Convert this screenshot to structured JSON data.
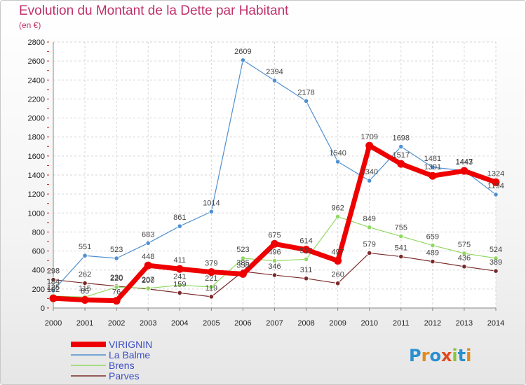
{
  "chart_data": {
    "type": "line",
    "title": "Evolution du Montant de la Dette par Habitant",
    "subtitle": "(en €)",
    "x": [
      "2000",
      "2001",
      "2002",
      "2003",
      "2004",
      "2005",
      "2006",
      "2007",
      "2008",
      "2009",
      "2010",
      "2011",
      "2012",
      "2013",
      "2014"
    ],
    "ylim": [
      0,
      2800
    ],
    "yticks": [
      0,
      200,
      400,
      600,
      800,
      1000,
      1200,
      1400,
      1600,
      1800,
      2000,
      2200,
      2400,
      2600,
      2800
    ],
    "grid": true,
    "legend_position": "bottom-left",
    "series": [
      {
        "name": "VIRIGNIN",
        "color": "#ee0000",
        "values": [
          102,
          85,
          76,
          448,
          411,
          379,
          358,
          675,
          614,
          497,
          1709,
          1517,
          1391,
          1443,
          1324
        ]
      },
      {
        "name": "La Balme",
        "color": "#4f90d0",
        "values": [
          184,
          551,
          523,
          683,
          861,
          1014,
          2609,
          2394,
          2178,
          1540,
          1340,
          1698,
          1481,
          1447,
          1194
        ]
      },
      {
        "name": "Brens",
        "color": "#90d860",
        "values": [
          125,
          115,
          220,
          207,
          241,
          221,
          523,
          496,
          513,
          962,
          849,
          755,
          659,
          575,
          524
        ]
      },
      {
        "name": "Parves",
        "color": "#7a2a2a",
        "values": [
          298,
          262,
          230,
          200,
          159,
          119,
          385,
          346,
          311,
          260,
          579,
          541,
          489,
          436,
          389
        ]
      }
    ]
  },
  "logo": {
    "text": "Proxiti",
    "colors": [
      "#2a8fd0",
      "#e08a1a",
      "#2a8fd0",
      "#e04a1a",
      "#8ac63a",
      "#2a8fd0",
      "#e08a1a"
    ]
  }
}
